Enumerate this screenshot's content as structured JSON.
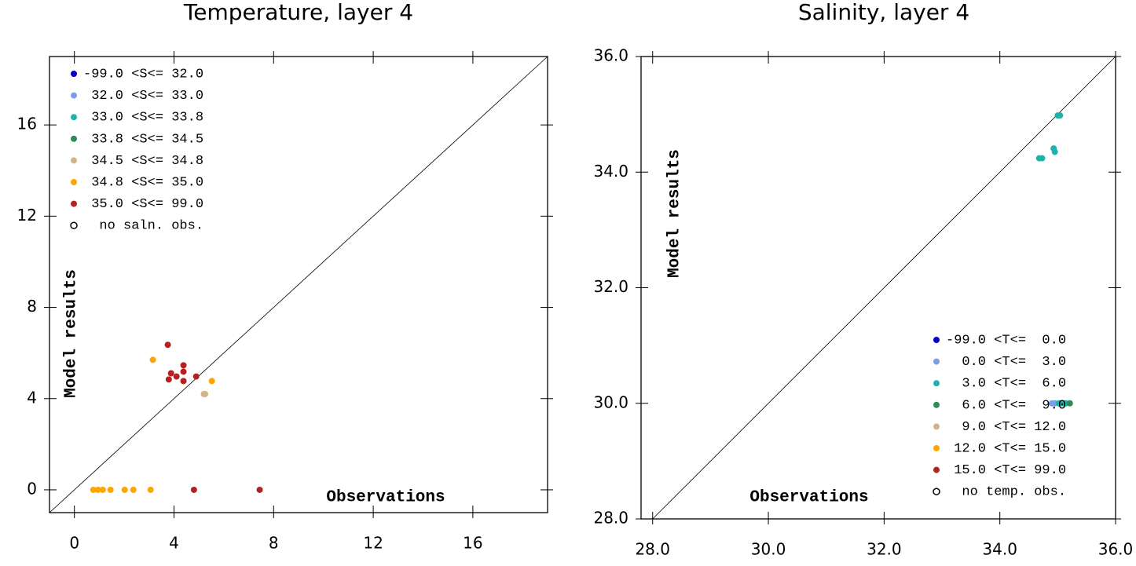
{
  "chart_data": [
    {
      "type": "scatter",
      "title": "Temperature, layer 4",
      "x_label": "Observations",
      "y_label": "Model results",
      "xlim": [
        -1,
        19
      ],
      "ylim": [
        -1,
        19
      ],
      "xticks": [
        0,
        4,
        8,
        12,
        16
      ],
      "yticks": [
        0,
        4,
        8,
        12,
        16
      ],
      "diagonal": true,
      "legend": "upper left",
      "series": [
        {
          "name": "-99.0 <S<= 32.0",
          "color": "#0000c8",
          "x": [],
          "y": []
        },
        {
          "name": " 32.0 <S<= 33.0",
          "color": "#7a9ee8",
          "x": [],
          "y": []
        },
        {
          "name": " 33.0 <S<= 33.8",
          "color": "#20b2aa",
          "x": [],
          "y": []
        },
        {
          "name": " 33.8 <S<= 34.5",
          "color": "#2e8b57",
          "x": [],
          "y": []
        },
        {
          "name": " 34.5 <S<= 34.8",
          "color": "#d2b48c",
          "x": [
            5.2,
            5.25
          ],
          "y": [
            4.2,
            4.2
          ]
        },
        {
          "name": " 34.8 <S<= 35.0",
          "color": "#ffa500",
          "x": [
            0.76,
            0.95,
            1.14,
            1.45,
            2.02,
            2.37,
            3.06,
            3.15,
            5.52
          ],
          "y": [
            0,
            0,
            0,
            0,
            0,
            0,
            0,
            5.7,
            4.77
          ]
        },
        {
          "name": " 35.0 <S<= 99.0",
          "color": "#b22222",
          "x": [
            3.75,
            3.88,
            3.79,
            4.1,
            4.38,
            4.38,
            4.38,
            4.89,
            4.8,
            7.44
          ],
          "y": [
            6.36,
            5.11,
            4.84,
            4.97,
            5.46,
            5.18,
            4.77,
            4.97,
            0,
            0
          ]
        },
        {
          "name": "  no saln. obs.",
          "color": "#000000",
          "marker": "open",
          "x": [],
          "y": []
        }
      ]
    },
    {
      "type": "scatter",
      "title": "Salinity, layer 4",
      "x_label": "Observations",
      "y_label": "Model results",
      "xlim": [
        27.8,
        36.0
      ],
      "ylim": [
        28.0,
        36.0
      ],
      "xticks": [
        {
          "value": 28,
          "label": "28.0"
        },
        {
          "value": 30,
          "label": "30.0"
        },
        {
          "value": 32,
          "label": "32.0"
        },
        {
          "value": 34,
          "label": "34.0"
        },
        {
          "value": 36,
          "label": "36.0"
        }
      ],
      "yticks": [
        {
          "value": 28,
          "label": "28.0"
        },
        {
          "value": 30,
          "label": "30.0"
        },
        {
          "value": 32,
          "label": "32.0"
        },
        {
          "value": 34,
          "label": "34.0"
        },
        {
          "value": 36,
          "label": "36.0"
        }
      ],
      "diagonal": true,
      "legend": "lower right",
      "series": [
        {
          "name": "-99.0 <T<=  0.0",
          "color": "#0000c8",
          "x": [],
          "y": []
        },
        {
          "name": "  0.0 <T<=  3.0",
          "color": "#7a9ee8",
          "x": [
            34.9,
            34.95
          ],
          "y": [
            30.0,
            30.0
          ]
        },
        {
          "name": "  3.0 <T<=  6.0",
          "color": "#20b2aa",
          "x": [
            35.0,
            35.04,
            34.93,
            34.95,
            34.68,
            34.73,
            35.02,
            35.08,
            35.14
          ],
          "y": [
            34.98,
            34.98,
            34.41,
            34.35,
            34.24,
            34.24,
            30.0,
            30.0,
            30.0
          ]
        },
        {
          "name": "  6.0 <T<=  9.0",
          "color": "#2e8b57",
          "x": [
            35.21
          ],
          "y": [
            30.0
          ]
        },
        {
          "name": "  9.0 <T<= 12.0",
          "color": "#d2b48c",
          "x": [],
          "y": []
        },
        {
          "name": " 12.0 <T<= 15.0",
          "color": "#ffa500",
          "x": [],
          "y": []
        },
        {
          "name": " 15.0 <T<= 99.0",
          "color": "#b22222",
          "x": [],
          "y": []
        },
        {
          "name": "  no temp. obs.",
          "color": "#000000",
          "marker": "open",
          "x": [],
          "y": []
        }
      ]
    }
  ]
}
